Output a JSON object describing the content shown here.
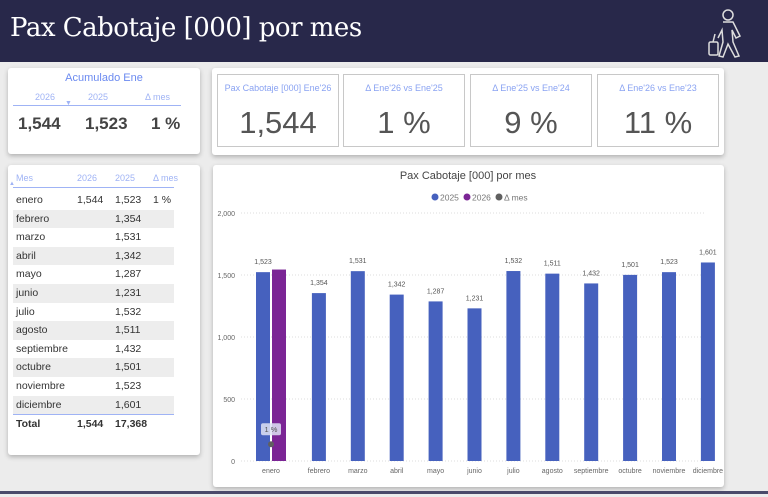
{
  "header": {
    "title": "Pax Cabotaje [000] por mes",
    "icon": "traveler-with-luggage-icon"
  },
  "accumulated": {
    "title": "Acumulado Ene",
    "columns": [
      "2026",
      "2025",
      "Δ mes"
    ],
    "values": [
      "1,544",
      "1,523",
      "1 %"
    ]
  },
  "table": {
    "columns": [
      "Mes",
      "2026",
      "2025",
      "Δ mes"
    ],
    "rows": [
      [
        "enero",
        "1,544",
        "1,523",
        "1 %"
      ],
      [
        "febrero",
        "",
        "1,354",
        ""
      ],
      [
        "marzo",
        "",
        "1,531",
        ""
      ],
      [
        "abril",
        "",
        "1,342",
        ""
      ],
      [
        "mayo",
        "",
        "1,287",
        ""
      ],
      [
        "junio",
        "",
        "1,231",
        ""
      ],
      [
        "julio",
        "",
        "1,532",
        ""
      ],
      [
        "agosto",
        "",
        "1,511",
        ""
      ],
      [
        "septiembre",
        "",
        "1,432",
        ""
      ],
      [
        "octubre",
        "",
        "1,501",
        ""
      ],
      [
        "noviembre",
        "",
        "1,523",
        ""
      ],
      [
        "diciembre",
        "",
        "1,601",
        ""
      ]
    ],
    "total": [
      "Total",
      "1,544",
      "17,368",
      ""
    ]
  },
  "kpis": [
    {
      "label": "Pax Cabotaje [000] Ene'26",
      "value": "1,544"
    },
    {
      "label": "Δ Ene'26 vs Ene'25",
      "value": "1 %"
    },
    {
      "label": "Δ Ene'25 vs Ene'24",
      "value": "9 %"
    },
    {
      "label": "Δ Ene'26 vs Ene'23",
      "value": "11 %"
    }
  ],
  "chart_data": {
    "type": "bar",
    "title": "Pax Cabotaje [000] por mes",
    "categories": [
      "enero",
      "febrero",
      "marzo",
      "abril",
      "mayo",
      "junio",
      "julio",
      "agosto",
      "septiembre",
      "octubre",
      "noviembre",
      "diciembre"
    ],
    "series": [
      {
        "name": "2025",
        "color": "#4661be",
        "values": [
          1523,
          1354,
          1531,
          1342,
          1287,
          1231,
          1532,
          1511,
          1432,
          1501,
          1523,
          1601
        ],
        "labels": [
          "1,523",
          "1,354",
          "1,531",
          "1,342",
          "1,287",
          "1,231",
          "1,532",
          "1,511",
          "1,432",
          "1,501",
          "1,523",
          "1,601"
        ]
      },
      {
        "name": "2026",
        "color": "#7b2595",
        "values": [
          1544,
          null,
          null,
          null,
          null,
          null,
          null,
          null,
          null,
          null,
          null,
          null
        ]
      },
      {
        "name": "Δ mes",
        "color": "#606060",
        "type": "line",
        "axis": "right",
        "values": [
          0.01,
          null,
          null,
          null,
          null,
          null,
          null,
          null,
          null,
          null,
          null,
          null
        ],
        "labels": [
          "1 %"
        ]
      }
    ],
    "ylim": [
      0,
      2000
    ],
    "yticks": [
      "0",
      "500",
      "1,000",
      "1,500",
      "2,000"
    ],
    "y2lim": [
      0,
      0.1
    ],
    "y2ticks": [
      "0 %",
      "2 %",
      "4 %",
      "6 %",
      "8 %",
      "10 %"
    ],
    "legend": "top-center",
    "grid": true
  }
}
